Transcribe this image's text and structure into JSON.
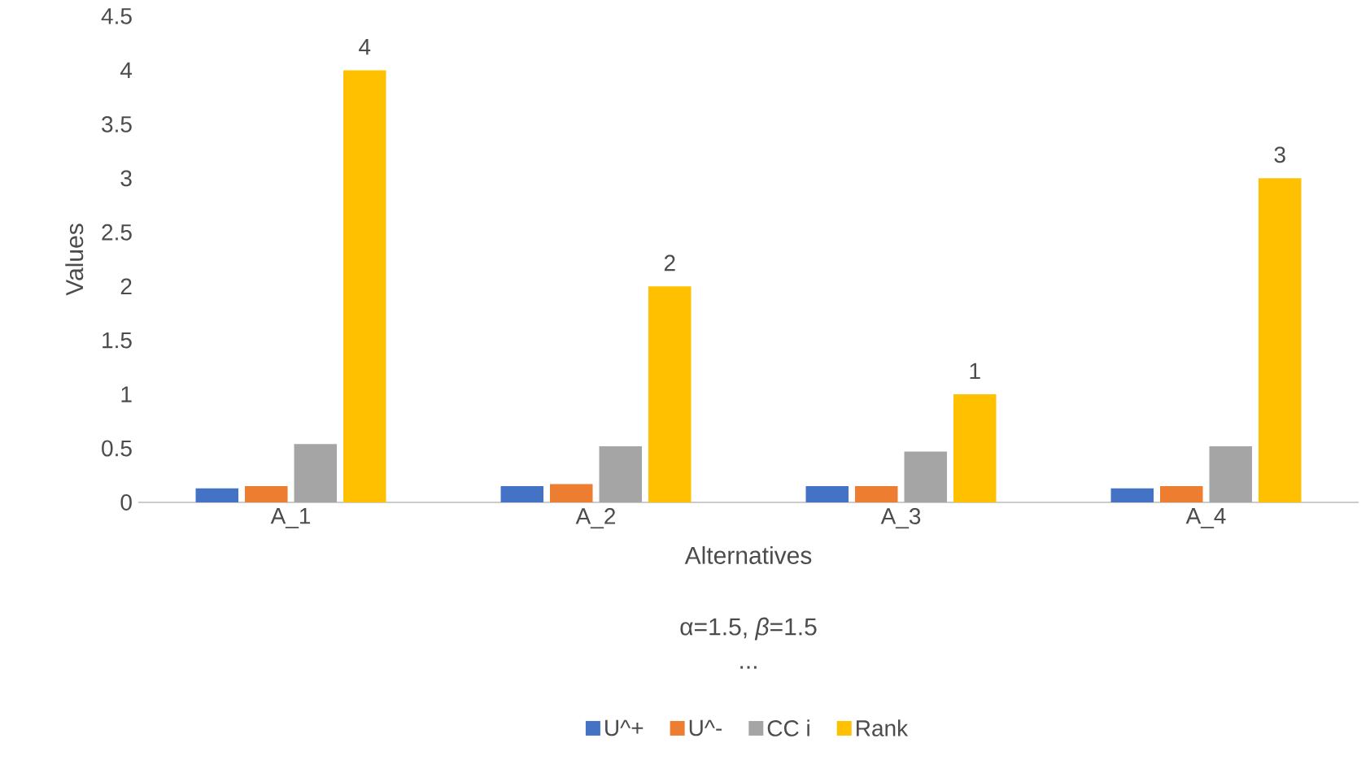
{
  "chart_data": {
    "type": "bar",
    "ylabel": "Values",
    "xlabel": "Alternatives",
    "annotations": [
      "α=1.5, *β*=1.5",
      "..."
    ],
    "categories": [
      "A_1",
      "A_2",
      "A_3",
      "A_4"
    ],
    "series": [
      {
        "name": "U^+",
        "color": "#4472c4",
        "values": [
          0.13,
          0.15,
          0.15,
          0.13
        ]
      },
      {
        "name": "U^-",
        "color": "#ed7d31",
        "values": [
          0.15,
          0.17,
          0.15,
          0.15
        ]
      },
      {
        "name": "CC i",
        "color": "#a5a5a5",
        "values": [
          0.54,
          0.52,
          0.47,
          0.52
        ]
      },
      {
        "name": "Rank",
        "color": "#ffc000",
        "values": [
          4,
          2,
          1,
          3
        ],
        "value_labels": [
          "4",
          "2",
          "1",
          "3"
        ]
      }
    ],
    "ylim": [
      0,
      4.5
    ],
    "yticks": [
      0,
      0.5,
      1,
      1.5,
      2,
      2.5,
      3,
      3.5,
      4,
      4.5
    ],
    "grid": false,
    "legend": "bottom"
  }
}
